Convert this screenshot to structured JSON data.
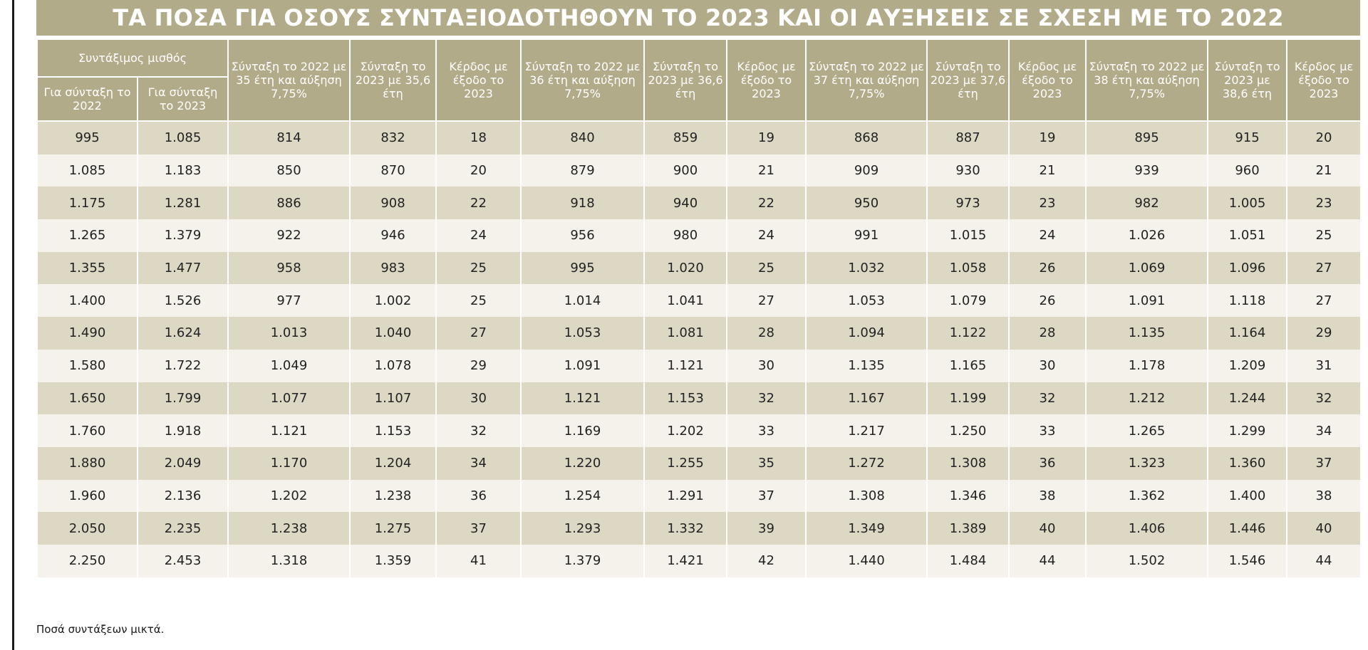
{
  "title": "ΤΑ ΠΟΣΑ ΓΙΑ ΟΣΟΥΣ ΣΥΝΤΑΞΙΟΔΟΤΗΘΟΥΝ ΤΟ 2023 ΚΑΙ ΟΙ ΑΥΞΗΣΕΙΣ ΣΕ ΣΧΕΣΗ ΜΕ ΤΟ 2022",
  "header": {
    "group_label": "Συντάξιμος μισθός",
    "sub_2022": "Για σύνταξη το 2022",
    "sub_2023": "Για σύνταξη το 2023",
    "columns": [
      "Σύνταξη το 2022 με 35 έτη και αύξηση 7,75%",
      "Σύνταξη το 2023 με 35,6 έτη",
      "Κέρδος με έξοδο το 2023",
      "Σύνταξη το 2022 με 36 έτη και αύξηση 7,75%",
      "Σύνταξη το 2023 με 36,6 έτη",
      "Κέρδος με έξοδο το 2023",
      "Σύνταξη το 2022 με 37 έτη και αύξηση 7,75%",
      "Σύνταξη το 2023 με 37,6 έτη",
      "Κέρδος με έξοδο το 2023",
      "Σύνταξη το 2022 με 38 έτη και αύξηση 7,75%",
      "Σύνταξη το 2023 με 38,6 έτη",
      "Κέρδος με έξοδο το 2023"
    ]
  },
  "rows": [
    [
      "995",
      "1.085",
      "814",
      "832",
      "18",
      "840",
      "859",
      "19",
      "868",
      "887",
      "19",
      "895",
      "915",
      "20"
    ],
    [
      "1.085",
      "1.183",
      "850",
      "870",
      "20",
      "879",
      "900",
      "21",
      "909",
      "930",
      "21",
      "939",
      "960",
      "21"
    ],
    [
      "1.175",
      "1.281",
      "886",
      "908",
      "22",
      "918",
      "940",
      "22",
      "950",
      "973",
      "23",
      "982",
      "1.005",
      "23"
    ],
    [
      "1.265",
      "1.379",
      "922",
      "946",
      "24",
      "956",
      "980",
      "24",
      "991",
      "1.015",
      "24",
      "1.026",
      "1.051",
      "25"
    ],
    [
      "1.355",
      "1.477",
      "958",
      "983",
      "25",
      "995",
      "1.020",
      "25",
      "1.032",
      "1.058",
      "26",
      "1.069",
      "1.096",
      "27"
    ],
    [
      "1.400",
      "1.526",
      "977",
      "1.002",
      "25",
      "1.014",
      "1.041",
      "27",
      "1.053",
      "1.079",
      "26",
      "1.091",
      "1.118",
      "27"
    ],
    [
      "1.490",
      "1.624",
      "1.013",
      "1.040",
      "27",
      "1.053",
      "1.081",
      "28",
      "1.094",
      "1.122",
      "28",
      "1.135",
      "1.164",
      "29"
    ],
    [
      "1.580",
      "1.722",
      "1.049",
      "1.078",
      "29",
      "1.091",
      "1.121",
      "30",
      "1.135",
      "1.165",
      "30",
      "1.178",
      "1.209",
      "31"
    ],
    [
      "1.650",
      "1.799",
      "1.077",
      "1.107",
      "30",
      "1.121",
      "1.153",
      "32",
      "1.167",
      "1.199",
      "32",
      "1.212",
      "1.244",
      "32"
    ],
    [
      "1.760",
      "1.918",
      "1.121",
      "1.153",
      "32",
      "1.169",
      "1.202",
      "33",
      "1.217",
      "1.250",
      "33",
      "1.265",
      "1.299",
      "34"
    ],
    [
      "1.880",
      "2.049",
      "1.170",
      "1.204",
      "34",
      "1.220",
      "1.255",
      "35",
      "1.272",
      "1.308",
      "36",
      "1.323",
      "1.360",
      "37"
    ],
    [
      "1.960",
      "2.136",
      "1.202",
      "1.238",
      "36",
      "1.254",
      "1.291",
      "37",
      "1.308",
      "1.346",
      "38",
      "1.362",
      "1.400",
      "38"
    ],
    [
      "2.050",
      "2.235",
      "1.238",
      "1.275",
      "37",
      "1.293",
      "1.332",
      "39",
      "1.349",
      "1.389",
      "40",
      "1.406",
      "1.446",
      "40"
    ],
    [
      "2.250",
      "2.453",
      "1.318",
      "1.359",
      "41",
      "1.379",
      "1.421",
      "42",
      "1.440",
      "1.484",
      "44",
      "1.502",
      "1.546",
      "44"
    ]
  ],
  "footnote": "Ποσά συντάξεων μικτά.",
  "colors": {
    "header_bg": "#b2ab89",
    "row_dark": "#dcd8c4",
    "row_light": "#f4f2ea"
  }
}
